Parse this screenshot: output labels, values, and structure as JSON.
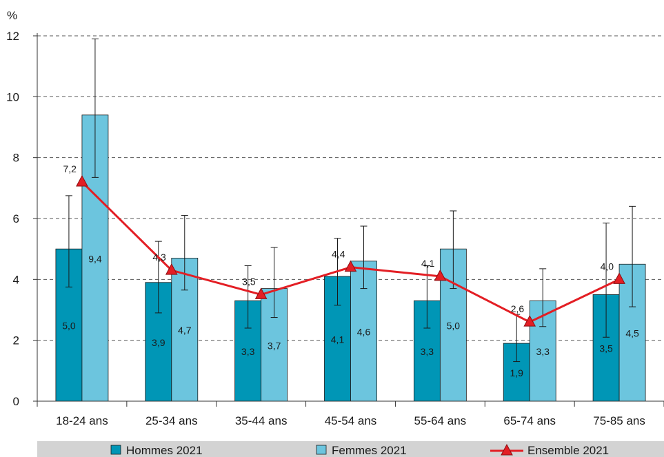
{
  "chart_data": {
    "type": "bar",
    "y_unit": "%",
    "ylim": [
      0,
      12
    ],
    "yticks": [
      0,
      2,
      4,
      6,
      8,
      10,
      12
    ],
    "grid": "horizontal dashed",
    "legend_position": "bottom",
    "categories": [
      "18-24 ans",
      "25-34 ans",
      "35-44 ans",
      "45-54 ans",
      "55-64 ans",
      "65-74 ans",
      "75-85 ans"
    ],
    "series": [
      {
        "name": "Hommes 2021",
        "kind": "bar",
        "color": "#0096b6",
        "values": [
          5.0,
          3.9,
          3.3,
          4.1,
          3.3,
          1.9,
          3.5
        ],
        "labels": [
          "5,0",
          "3,9",
          "3,3",
          "4,1",
          "3,3",
          "1,9",
          "3,5"
        ],
        "error_low": [
          3.75,
          2.9,
          2.4,
          3.15,
          2.4,
          1.3,
          2.1
        ],
        "error_high": [
          6.75,
          5.25,
          4.45,
          5.35,
          4.45,
          2.85,
          5.85
        ]
      },
      {
        "name": "Femmes 2021",
        "kind": "bar",
        "color": "#6cc5de",
        "values": [
          9.4,
          4.7,
          3.7,
          4.6,
          5.0,
          3.3,
          4.5
        ],
        "labels": [
          "9,4",
          "4,7",
          "3,7",
          "4,6",
          "5,0",
          "3,3",
          "4,5"
        ],
        "error_low": [
          7.35,
          3.65,
          2.75,
          3.7,
          3.7,
          2.45,
          3.1
        ],
        "error_high": [
          11.9,
          6.1,
          5.05,
          5.75,
          6.25,
          4.35,
          6.4
        ]
      },
      {
        "name": "Ensemble 2021",
        "kind": "line",
        "color": "#e31e24",
        "marker": "triangle",
        "values": [
          7.2,
          4.3,
          3.5,
          4.4,
          4.1,
          2.6,
          4.0
        ],
        "labels": [
          "7,2",
          "4,3",
          "3,5",
          "4,4",
          "4,1",
          "2,6",
          "4,0"
        ]
      }
    ]
  }
}
